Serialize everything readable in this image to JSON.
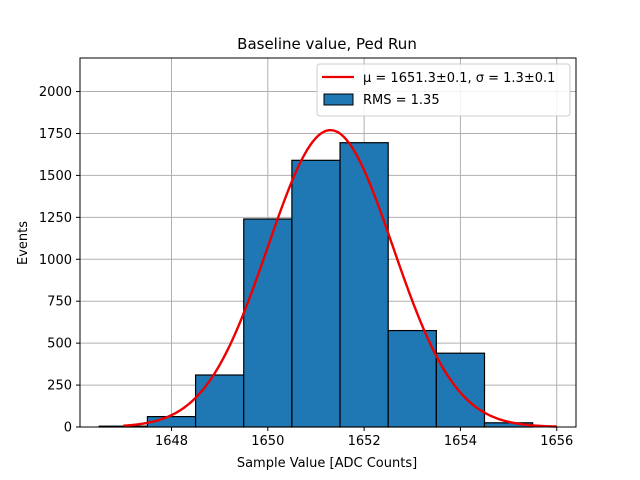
{
  "chart_data": {
    "type": "bar",
    "title": "Baseline value, Ped Run",
    "xlabel": "Sample Value [ADC Counts]",
    "ylabel": "Events",
    "xlim": [
      1646.1,
      1656.4
    ],
    "ylim": [
      0,
      2200
    ],
    "xticks": [
      1648,
      1650,
      1652,
      1654,
      1656
    ],
    "yticks": [
      0,
      250,
      500,
      750,
      1000,
      1250,
      1500,
      1750,
      2000
    ],
    "grid": true,
    "legend_position": "top-right",
    "bin_width": 1,
    "bins": [
      {
        "x0": 1646.5,
        "x1": 1647.5,
        "value": 5
      },
      {
        "x0": 1647.5,
        "x1": 1648.5,
        "value": 62
      },
      {
        "x0": 1648.5,
        "x1": 1649.5,
        "value": 310
      },
      {
        "x0": 1649.5,
        "x1": 1650.5,
        "value": 1240
      },
      {
        "x0": 1650.5,
        "x1": 1651.5,
        "value": 1590
      },
      {
        "x0": 1651.5,
        "x1": 1652.5,
        "value": 1695
      },
      {
        "x0": 1652.5,
        "x1": 1653.5,
        "value": 575
      },
      {
        "x0": 1653.5,
        "x1": 1654.5,
        "value": 440
      },
      {
        "x0": 1654.5,
        "x1": 1655.5,
        "value": 25
      }
    ],
    "fit": {
      "mu": 1651.3,
      "sigma": 1.3,
      "amplitude": 1770,
      "x_range": [
        1647.0,
        1656.0
      ]
    },
    "legend": [
      {
        "label": "μ = 1651.3±0.1, σ = 1.3±0.1",
        "kind": "line"
      },
      {
        "label": "RMS = 1.35",
        "kind": "patch"
      }
    ],
    "colors": {
      "bar_fill": "#1f77b4",
      "bar_edge": "#000000",
      "fit_line": "#ee0000",
      "grid": "#b0b0b0"
    }
  }
}
